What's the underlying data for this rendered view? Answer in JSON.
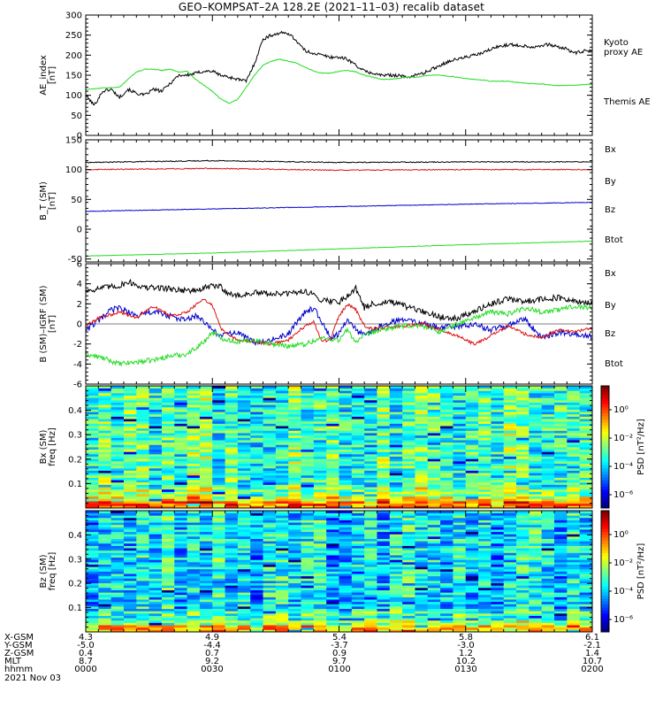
{
  "title": "GEO–KOMPSAT–2A 128.2E (2021–11–03) recalib dataset",
  "colors": {
    "black": "#000000",
    "blue": "#0000cc",
    "green": "#22dd22",
    "red": "#dd1111",
    "axis": "#000000"
  },
  "chart_data": [
    {
      "type": "line",
      "ylabel": "AE_index [nT]",
      "ylabel_lines": [
        "AE_index",
        "[nT]"
      ],
      "ylim": [
        0,
        300
      ],
      "yticks": [
        "0",
        "50",
        "100",
        "150",
        "200",
        "250",
        "300"
      ],
      "yticks_values": [
        0,
        50,
        100,
        150,
        200,
        250,
        300
      ],
      "x_minutes": [
        0,
        120
      ],
      "legend": [
        {
          "text": "Kyoto",
          "color": "green"
        },
        {
          "text": "proxy AE",
          "color": "green"
        },
        {
          "text": "Themis AE",
          "color": "black"
        }
      ],
      "series": [
        {
          "name": "Themis AE",
          "color": "black",
          "noise": 4,
          "x": [
            0,
            2,
            4,
            6,
            8,
            10,
            12,
            14,
            16,
            18,
            20,
            22,
            24,
            26,
            28,
            30,
            32,
            34,
            36,
            38,
            40,
            42,
            44,
            46,
            48,
            50,
            52,
            54,
            56,
            58,
            60,
            62,
            64,
            66,
            68,
            70,
            72,
            74,
            76,
            78,
            80,
            82,
            84,
            86,
            88,
            90,
            92,
            94,
            96,
            98,
            100,
            102,
            104,
            106,
            108,
            110,
            112,
            114,
            116,
            118,
            120
          ],
          "y": [
            100,
            75,
            110,
            115,
            95,
            115,
            105,
            100,
            115,
            110,
            130,
            150,
            150,
            155,
            160,
            160,
            150,
            145,
            140,
            135,
            180,
            240,
            250,
            255,
            255,
            235,
            210,
            205,
            200,
            195,
            195,
            190,
            175,
            160,
            155,
            150,
            150,
            150,
            145,
            150,
            155,
            165,
            175,
            185,
            190,
            195,
            200,
            205,
            215,
            222,
            226,
            225,
            223,
            220,
            225,
            226,
            220,
            215,
            205,
            210,
            210
          ]
        },
        {
          "name": "Kyoto proxy AE",
          "color": "green",
          "noise": 1,
          "x": [
            0,
            4,
            8,
            10,
            12,
            14,
            16,
            18,
            20,
            22,
            24,
            26,
            28,
            30,
            32,
            34,
            36,
            38,
            40,
            42,
            44,
            46,
            48,
            50,
            52,
            54,
            56,
            58,
            60,
            62,
            64,
            66,
            68,
            70,
            72,
            74,
            76,
            78,
            80,
            82,
            84,
            86,
            88,
            90,
            92,
            94,
            96,
            98,
            100,
            104,
            108,
            112,
            116,
            120
          ],
          "y": [
            115,
            118,
            120,
            140,
            158,
            165,
            165,
            162,
            165,
            158,
            160,
            140,
            125,
            110,
            90,
            80,
            90,
            120,
            150,
            175,
            185,
            190,
            185,
            180,
            170,
            160,
            155,
            155,
            160,
            162,
            158,
            150,
            145,
            140,
            140,
            142,
            145,
            145,
            148,
            150,
            150,
            148,
            145,
            142,
            140,
            138,
            135,
            135,
            135,
            130,
            128,
            124,
            125,
            128
          ]
        }
      ]
    },
    {
      "type": "line",
      "ylabel": "B_T (SM) [nT]",
      "ylabel_lines": [
        "B_T (SM)",
        "[nT]"
      ],
      "ylim": [
        -55,
        150
      ],
      "yticks": [
        "-50",
        "0",
        "50",
        "100",
        "150"
      ],
      "yticks_values": [
        -50,
        0,
        50,
        100,
        150
      ],
      "x_minutes": [
        0,
        120
      ],
      "legend": [
        {
          "text": "Bx",
          "color": "blue"
        },
        {
          "text": "By",
          "color": "green"
        },
        {
          "text": "Bz",
          "color": "red"
        },
        {
          "text": "Btot",
          "color": "black"
        }
      ],
      "series": [
        {
          "name": "Btot",
          "color": "black",
          "noise": 0.8,
          "x": [
            0,
            30,
            60,
            90,
            120
          ],
          "y": [
            112,
            115,
            112,
            113,
            113
          ]
        },
        {
          "name": "Bz",
          "color": "red",
          "noise": 0.8,
          "x": [
            0,
            30,
            60,
            90,
            120
          ],
          "y": [
            100,
            102,
            99,
            100,
            100
          ]
        },
        {
          "name": "Bx",
          "color": "blue",
          "noise": 0.5,
          "x": [
            0,
            30,
            60,
            90,
            120
          ],
          "y": [
            30,
            34,
            38,
            42,
            45
          ]
        },
        {
          "name": "By",
          "color": "green",
          "noise": 0.4,
          "x": [
            0,
            30,
            60,
            90,
            120
          ],
          "y": [
            -45,
            -40,
            -33,
            -26,
            -20
          ]
        }
      ]
    },
    {
      "type": "line",
      "ylabel": "B (SM)–IGRF (SM) [nT]",
      "ylabel_lines": [
        "B (SM)–IGRF (SM)",
        "[nT]"
      ],
      "ylim": [
        -6,
        6
      ],
      "yticks": [
        "-6",
        "-4",
        "-2",
        "0",
        "2",
        "4",
        "6"
      ],
      "yticks_values": [
        -6,
        -4,
        -2,
        0,
        2,
        4,
        6
      ],
      "x_minutes": [
        0,
        120
      ],
      "legend": [
        {
          "text": "Bx",
          "color": "blue"
        },
        {
          "text": "By",
          "color": "green"
        },
        {
          "text": "Bz",
          "color": "red"
        },
        {
          "text": "Btot",
          "color": "black"
        }
      ],
      "series": [
        {
          "name": "Btot",
          "color": "black",
          "noise": 0.3,
          "x": [
            0,
            4,
            8,
            10,
            14,
            18,
            22,
            26,
            30,
            32,
            34,
            36,
            40,
            44,
            48,
            52,
            56,
            60,
            62,
            64,
            66,
            68,
            72,
            76,
            80,
            84,
            88,
            92,
            96,
            100,
            104,
            108,
            112,
            116,
            120
          ],
          "y": [
            3.3,
            3.6,
            3.8,
            4.2,
            3.6,
            3.6,
            3.4,
            3.3,
            3.8,
            3.7,
            3.0,
            2.8,
            3.1,
            3.0,
            3.0,
            3.3,
            2.4,
            2.2,
            2.8,
            3.6,
            1.6,
            2.0,
            2.2,
            1.7,
            1.2,
            0.7,
            0.6,
            1.2,
            2.0,
            2.5,
            2.2,
            2.5,
            2.6,
            2.2,
            2.0
          ]
        },
        {
          "name": "Bx",
          "color": "blue",
          "noise": 0.3,
          "x": [
            0,
            4,
            6,
            8,
            12,
            16,
            20,
            22,
            24,
            26,
            28,
            30,
            32,
            34,
            36,
            38,
            40,
            44,
            48,
            52,
            54,
            56,
            58,
            60,
            62,
            64,
            66,
            68,
            72,
            76,
            80,
            84,
            88,
            92,
            96,
            100,
            104,
            108,
            112,
            116,
            120
          ],
          "y": [
            -0.6,
            0.6,
            1.4,
            1.6,
            0.8,
            1.2,
            0.8,
            0.5,
            0.4,
            0.8,
            0.2,
            -0.6,
            -1.2,
            -1.0,
            -0.8,
            -1.4,
            -1.8,
            -1.6,
            -1.0,
            1.2,
            1.6,
            0.2,
            -1.4,
            -1.0,
            0.5,
            -0.6,
            -1.2,
            -0.6,
            0.2,
            0.4,
            0.0,
            -0.4,
            -0.2,
            0.0,
            -0.6,
            -0.2,
            0.5,
            -1.4,
            -0.8,
            -1.0,
            -1.2
          ]
        },
        {
          "name": "Bz",
          "color": "red",
          "noise": 0.15,
          "x": [
            0,
            4,
            6,
            8,
            12,
            16,
            20,
            24,
            28,
            30,
            32,
            34,
            36,
            40,
            44,
            48,
            52,
            54,
            56,
            58,
            60,
            62,
            64,
            66,
            68,
            72,
            76,
            80,
            84,
            88,
            92,
            96,
            100,
            104,
            108,
            112,
            116,
            120
          ],
          "y": [
            -0.2,
            0.8,
            0.9,
            1.2,
            0.6,
            1.8,
            0.8,
            1.2,
            2.5,
            1.8,
            -0.4,
            -1.2,
            -1.6,
            -1.8,
            -2.0,
            -1.6,
            -0.2,
            0.2,
            -1.8,
            -1.5,
            0.8,
            2.0,
            1.4,
            -0.2,
            -0.5,
            -0.3,
            -0.2,
            0.0,
            -0.6,
            -1.2,
            -2.0,
            -1.2,
            -0.2,
            -1.0,
            -1.4,
            -0.6,
            -0.8,
            -0.4
          ]
        },
        {
          "name": "By",
          "color": "green",
          "noise": 0.25,
          "x": [
            0,
            4,
            8,
            12,
            16,
            20,
            24,
            28,
            30,
            32,
            34,
            36,
            40,
            44,
            48,
            52,
            56,
            60,
            62,
            64,
            66,
            68,
            72,
            76,
            80,
            84,
            88,
            92,
            96,
            100,
            104,
            108,
            112,
            116,
            120
          ],
          "y": [
            -3.0,
            -3.4,
            -4.0,
            -3.8,
            -3.6,
            -3.2,
            -3.0,
            -1.8,
            -0.8,
            -1.4,
            -1.6,
            -1.8,
            -1.6,
            -2.0,
            -2.2,
            -2.0,
            -1.4,
            -1.6,
            -0.6,
            -1.8,
            -1.2,
            -0.8,
            -0.4,
            -0.2,
            -0.2,
            -0.8,
            0.0,
            0.6,
            1.2,
            1.0,
            1.6,
            1.2,
            1.4,
            1.8,
            1.6
          ]
        }
      ]
    },
    {
      "type": "heatmap",
      "ylabel": "Bx (SM) freq [Hz]",
      "ylabel_lines": [
        "Bx (SM)",
        "freq [Hz]"
      ],
      "ylim": [
        0,
        0.5
      ],
      "yticks": [
        "0.1",
        "0.2",
        "0.3",
        "0.4"
      ],
      "yticks_values": [
        0.1,
        0.2,
        0.3,
        0.4
      ],
      "x_minutes": [
        0,
        120
      ],
      "colorbar_label": "PSD [nT²/Hz]",
      "colorbar_ticks": [
        "10⁰",
        "10⁻²",
        "10⁻⁴",
        "10⁻⁶"
      ],
      "seed": 7,
      "bias": 0.55
    },
    {
      "type": "heatmap",
      "ylabel": "Bz (SM) freq [Hz]",
      "ylabel_lines": [
        "Bz (SM)",
        "freq [Hz]"
      ],
      "ylim": [
        0,
        0.5
      ],
      "yticks": [
        "0.1",
        "0.2",
        "0.3",
        "0.4"
      ],
      "yticks_values": [
        0.1,
        0.2,
        0.3,
        0.4
      ],
      "x_minutes": [
        0,
        120
      ],
      "colorbar_label": "PSD [nT²/Hz]",
      "colorbar_ticks": [
        "10⁰",
        "10⁻²",
        "10⁻⁴",
        "10⁻⁶"
      ],
      "seed": 13,
      "bias": 0.45
    }
  ],
  "ephemeris": {
    "rows": [
      {
        "name": "X-GSM",
        "values": [
          "4.3",
          "4.9",
          "5.4",
          "5.8",
          "6.1"
        ]
      },
      {
        "name": "Y-GSM",
        "values": [
          "-5.0",
          "-4.4",
          "-3.7",
          "-3.0",
          "-2.1"
        ]
      },
      {
        "name": "Z-GSM",
        "values": [
          "0.4",
          "0.7",
          "0.9",
          "1.2",
          "1.4"
        ]
      },
      {
        "name": "MLT",
        "values": [
          "8.7",
          "9.2",
          "9.7",
          "10.2",
          "10.7"
        ]
      },
      {
        "name": "hhmm",
        "values": [
          "0000",
          "0030",
          "0100",
          "0130",
          "0200"
        ]
      }
    ],
    "date": "2021 Nov 03",
    "tick_minutes": [
      0,
      30,
      60,
      90,
      120
    ]
  }
}
